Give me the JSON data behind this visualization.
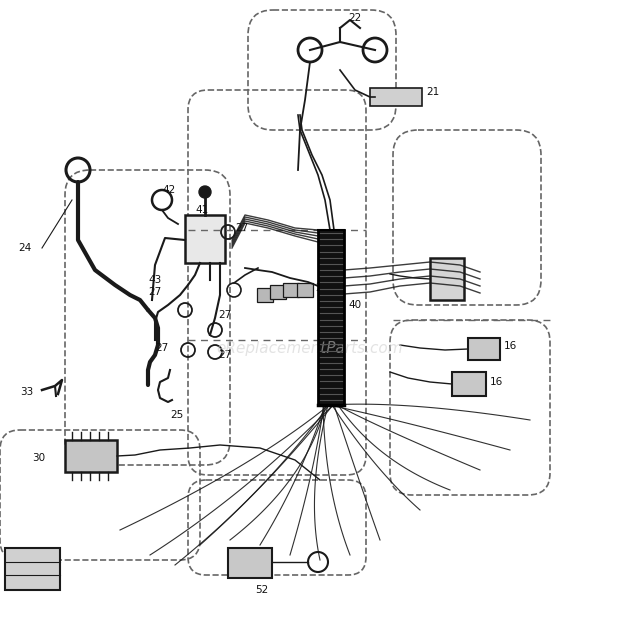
{
  "bg_color": "#ffffff",
  "line_color": "#1a1a1a",
  "dashed_color": "#666666",
  "watermark": "eReplacementParts.com",
  "watermark_color": "#cccccc",
  "fig_width": 6.2,
  "fig_height": 6.3,
  "dpi": 100
}
